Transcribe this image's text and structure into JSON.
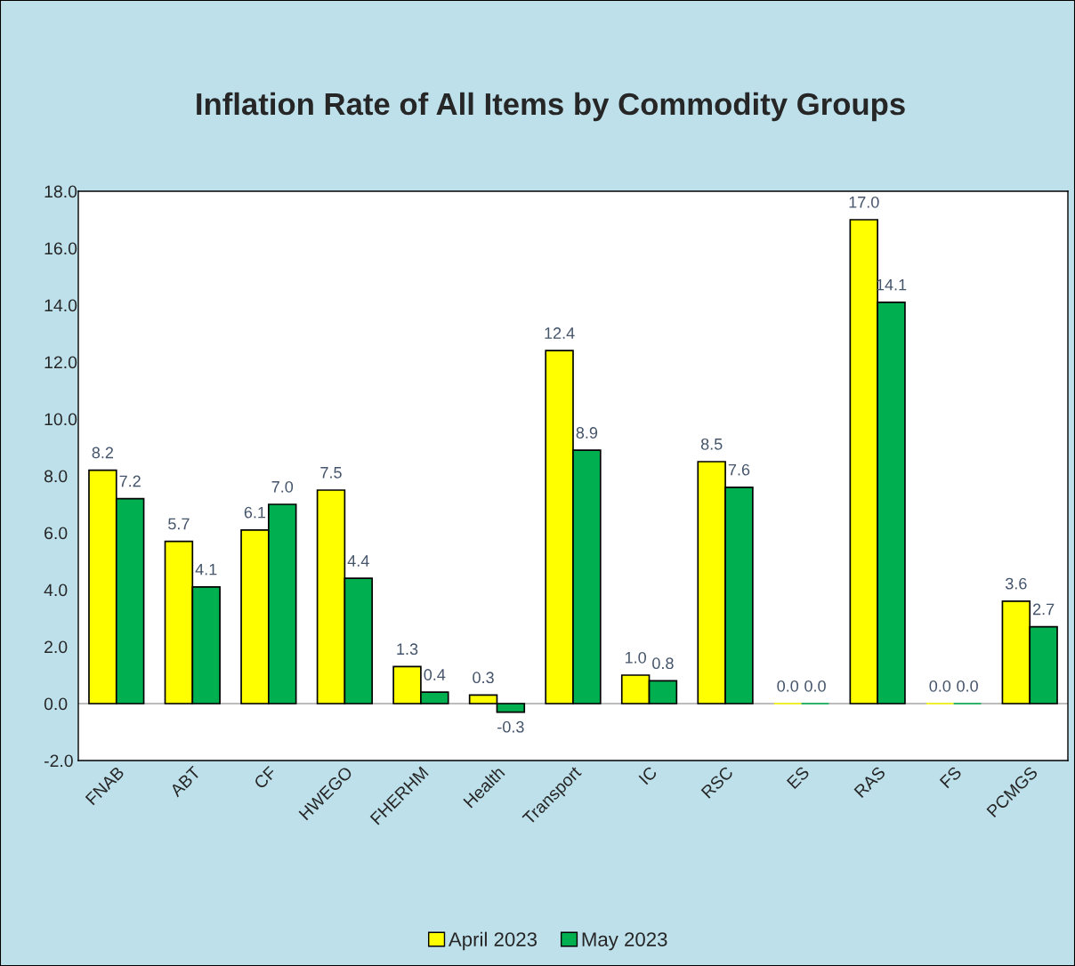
{
  "chart_data": {
    "type": "bar",
    "title": "Inflation Rate of All Items by Commodity Groups",
    "categories": [
      "FNAB",
      "ABT",
      "CF",
      "HWEGO",
      "FHERHM",
      "Health",
      "Transport",
      "IC",
      "RSC",
      "ES",
      "RAS",
      "FS",
      "PCMGS"
    ],
    "series": [
      {
        "name": "April 2023",
        "color": "#ffff00",
        "values": [
          8.2,
          5.7,
          6.1,
          7.5,
          1.3,
          0.3,
          12.4,
          1.0,
          8.5,
          0.0,
          17.0,
          0.0,
          3.6
        ],
        "value_labels": [
          "8.2",
          "5.7",
          "6.1",
          "7.5",
          "1.3",
          "0.3",
          "12.4",
          "1.0",
          "8.5",
          "0.0",
          "17.0",
          "0.0",
          "3.6"
        ]
      },
      {
        "name": "May 2023",
        "color": "#00b050",
        "values": [
          7.2,
          4.1,
          7.0,
          4.4,
          0.4,
          -0.3,
          8.9,
          0.8,
          7.6,
          0.0,
          14.1,
          0.0,
          2.7
        ],
        "value_labels": [
          "7.2",
          "4.1",
          "7.0",
          "4.4",
          "0.4",
          "-0.3",
          "8.9",
          "0.8",
          "7.6",
          "0.0",
          "14.1",
          "0.0",
          "2.7"
        ]
      }
    ],
    "ylim": [
      -2,
      18
    ],
    "yticks": [
      {
        "value": -2,
        "label": "-2.0"
      },
      {
        "value": 0,
        "label": "0.0"
      },
      {
        "value": 2,
        "label": "2.0"
      },
      {
        "value": 4,
        "label": "4.0"
      },
      {
        "value": 6,
        "label": "6.0"
      },
      {
        "value": 8,
        "label": "8.0"
      },
      {
        "value": 10,
        "label": "10.0"
      },
      {
        "value": 12,
        "label": "12.0"
      },
      {
        "value": 14,
        "label": "14.0"
      },
      {
        "value": 16,
        "label": "16.0"
      },
      {
        "value": 18,
        "label": "18.0"
      }
    ],
    "ref_lines": [
      {
        "axis": "y",
        "value": 0,
        "color": "#a6a6a6"
      }
    ],
    "grid": false,
    "legend": "bottom"
  }
}
